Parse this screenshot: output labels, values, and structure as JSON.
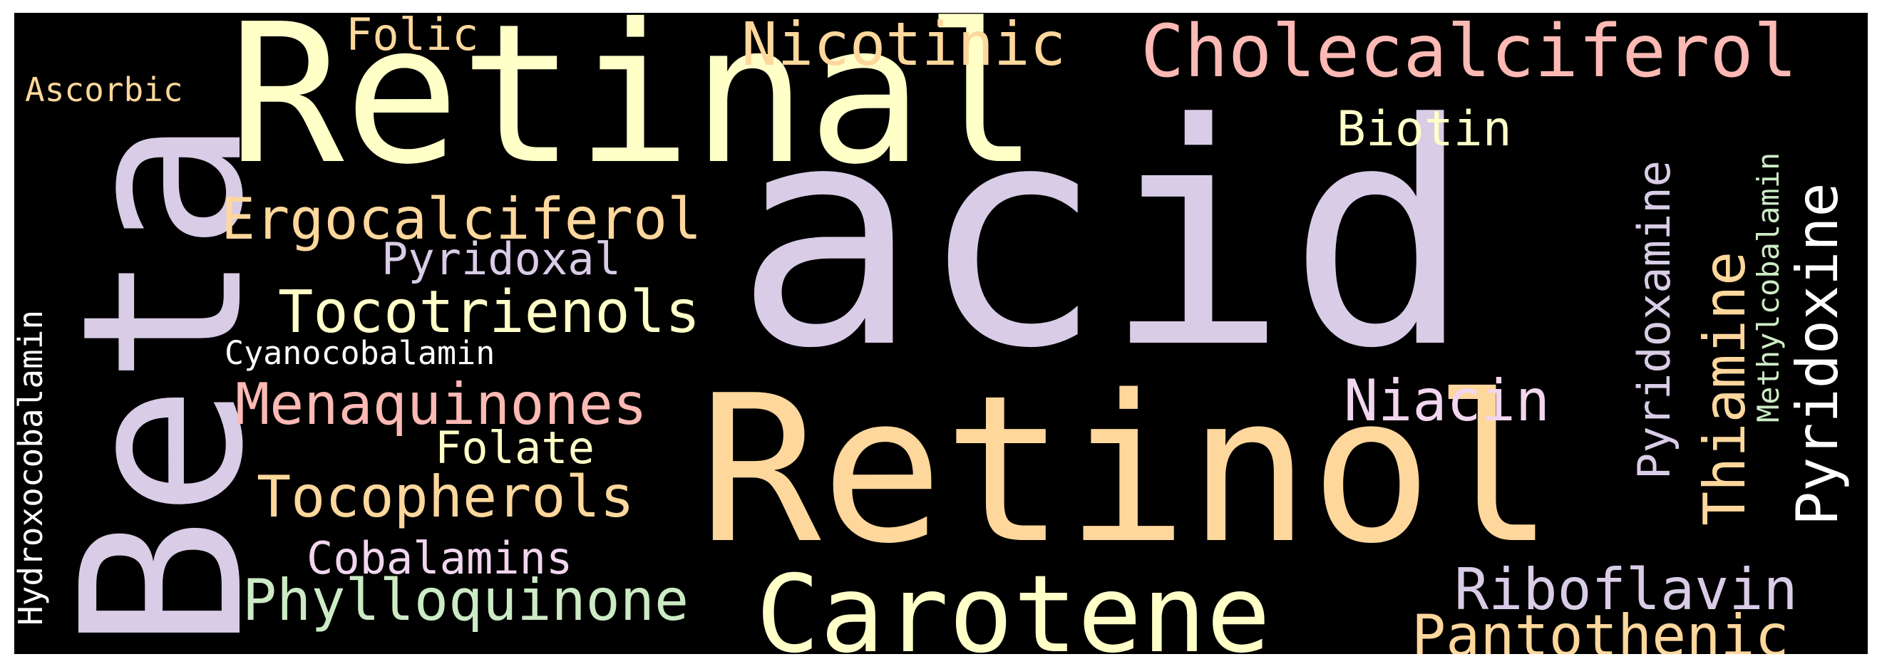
{
  "words": [
    {
      "text": "acid",
      "color": "#d9cce6"
    },
    {
      "text": "Retinal",
      "color": "#ffffc8"
    },
    {
      "text": "Retinol",
      "color": "#fed79c"
    },
    {
      "text": "Beta",
      "color": "#d9cce6"
    },
    {
      "text": "Carotene",
      "color": "#ffffc8"
    },
    {
      "text": "Cholecalciferol",
      "color": "#fdb9b4"
    },
    {
      "text": "Nicotinic",
      "color": "#fed79c"
    },
    {
      "text": "Folic",
      "color": "#fed79c"
    },
    {
      "text": "Ascorbic",
      "color": "#fed79c"
    },
    {
      "text": "Biotin",
      "color": "#ffffc8"
    },
    {
      "text": "Ergocalciferol",
      "color": "#fed79c"
    },
    {
      "text": "Pyridoxal",
      "color": "#d9cce6"
    },
    {
      "text": "Tocotrienols",
      "color": "#ffffc8"
    },
    {
      "text": "Cyanocobalamin",
      "color": "#ffffff"
    },
    {
      "text": "Menaquinones",
      "color": "#fdb9b4"
    },
    {
      "text": "Folate",
      "color": "#ffffc8"
    },
    {
      "text": "Tocopherols",
      "color": "#fed79c"
    },
    {
      "text": "Cobalamins",
      "color": "#f2d6ef"
    },
    {
      "text": "Phylloquinone",
      "color": "#ccebc5"
    },
    {
      "text": "Niacin",
      "color": "#f2d6ef"
    },
    {
      "text": "Riboflavin",
      "color": "#d9cce6"
    },
    {
      "text": "Pantothenic",
      "color": "#fed79c"
    },
    {
      "text": "Hydroxocobalamin",
      "color": "#ffffff"
    },
    {
      "text": "Pyridoxamine",
      "color": "#d9cce6"
    },
    {
      "text": "Thiamine",
      "color": "#fed79c"
    },
    {
      "text": "Methylcobalamin",
      "color": "#ccebc5"
    },
    {
      "text": "Pyridoxine",
      "color": "#ffffff"
    }
  ]
}
